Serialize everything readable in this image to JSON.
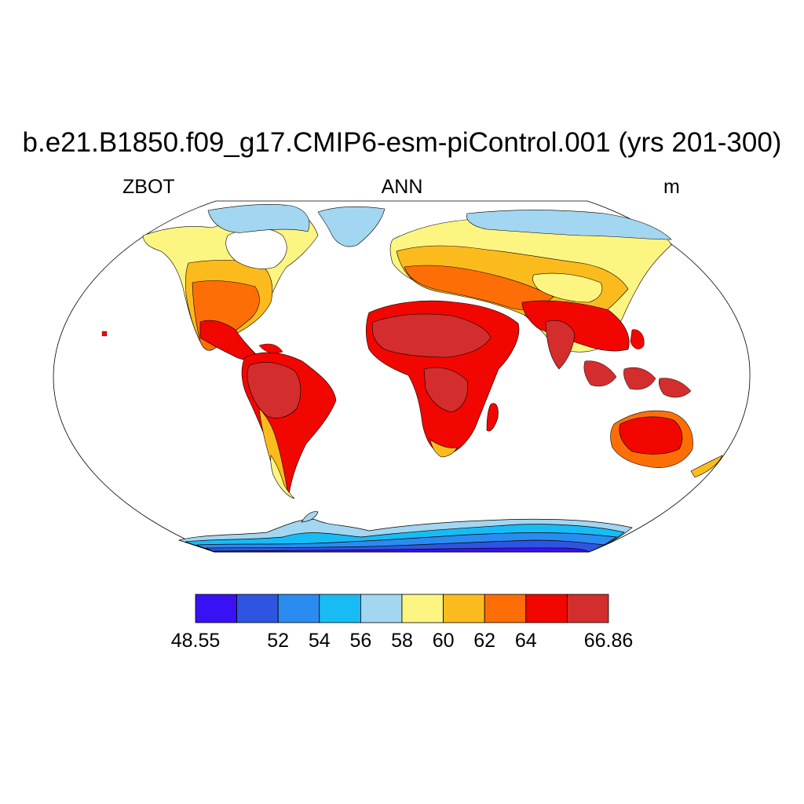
{
  "title": "b.e21.B1850.f09_g17.CMIP6-esm-piControl.001 (yrs 201-300)",
  "subtitle_left": "ZBOT",
  "subtitle_center": "ANN",
  "subtitle_right": "m",
  "projection": "Robinson (global)",
  "colorbar": {
    "colors": [
      "#3a10f5",
      "#2f55e0",
      "#2a8cf0",
      "#18bcf5",
      "#a3d6f0",
      "#fdf582",
      "#fcbb1d",
      "#fd6f06",
      "#f20600",
      "#d42d2d"
    ],
    "labels": [
      "48.55",
      "52",
      "54",
      "56",
      "58",
      "60",
      "62",
      "64",
      "66.86"
    ],
    "label_bins": [
      0,
      2,
      3,
      4,
      5,
      6,
      7,
      8,
      10
    ]
  }
}
